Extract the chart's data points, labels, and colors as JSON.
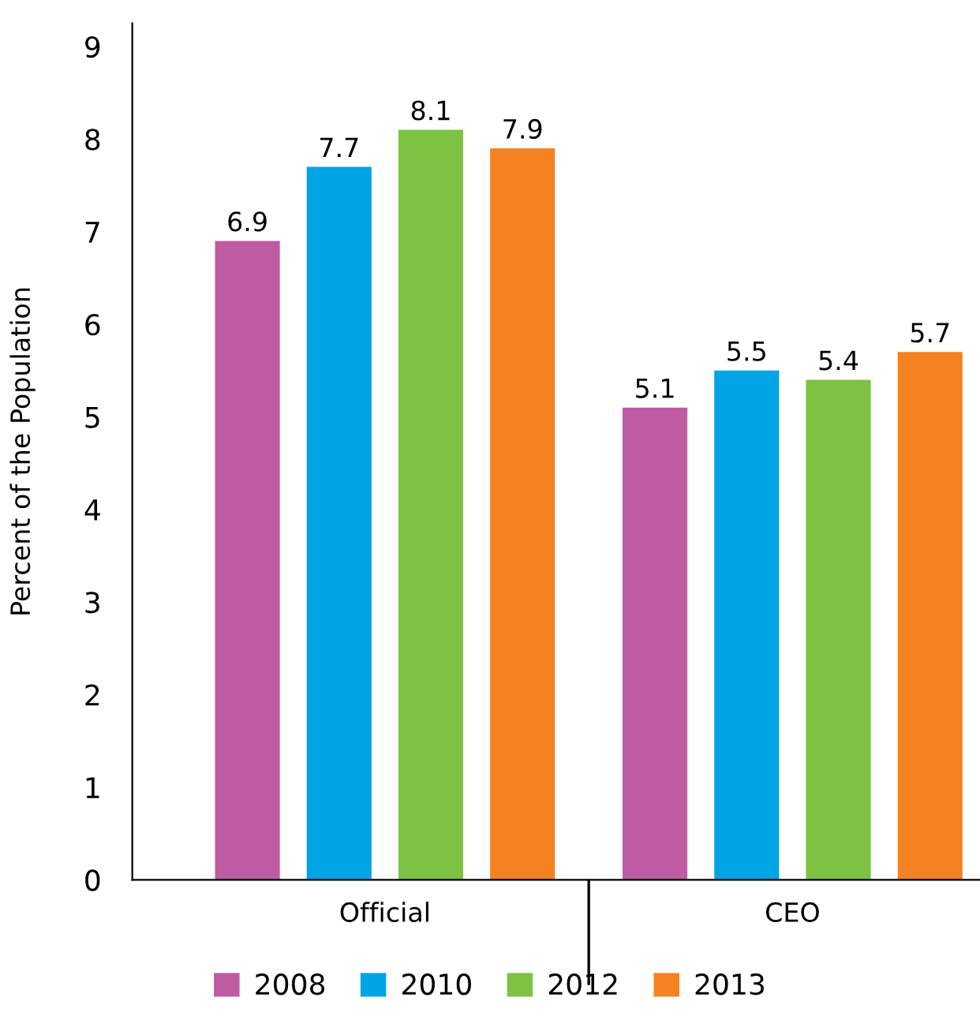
{
  "chart_data": {
    "type": "bar",
    "ylabel": "Percent of the Population",
    "categories": [
      "Official",
      "CEO"
    ],
    "series": [
      {
        "name": "2008",
        "color": "#bd5ba3",
        "values": [
          6.9,
          5.1
        ]
      },
      {
        "name": "2010",
        "color": "#00a3e4",
        "values": [
          7.7,
          5.5
        ]
      },
      {
        "name": "2012",
        "color": "#7dc242",
        "values": [
          8.1,
          5.4
        ]
      },
      {
        "name": "2013",
        "color": "#f58220",
        "values": [
          7.9,
          5.7
        ]
      }
    ],
    "ylim": [
      0,
      9.25
    ],
    "yticks": [
      0,
      1,
      2,
      3,
      4,
      5,
      6,
      7,
      8,
      9
    ],
    "grid": false,
    "legend": "bottom",
    "data_labels": true
  }
}
